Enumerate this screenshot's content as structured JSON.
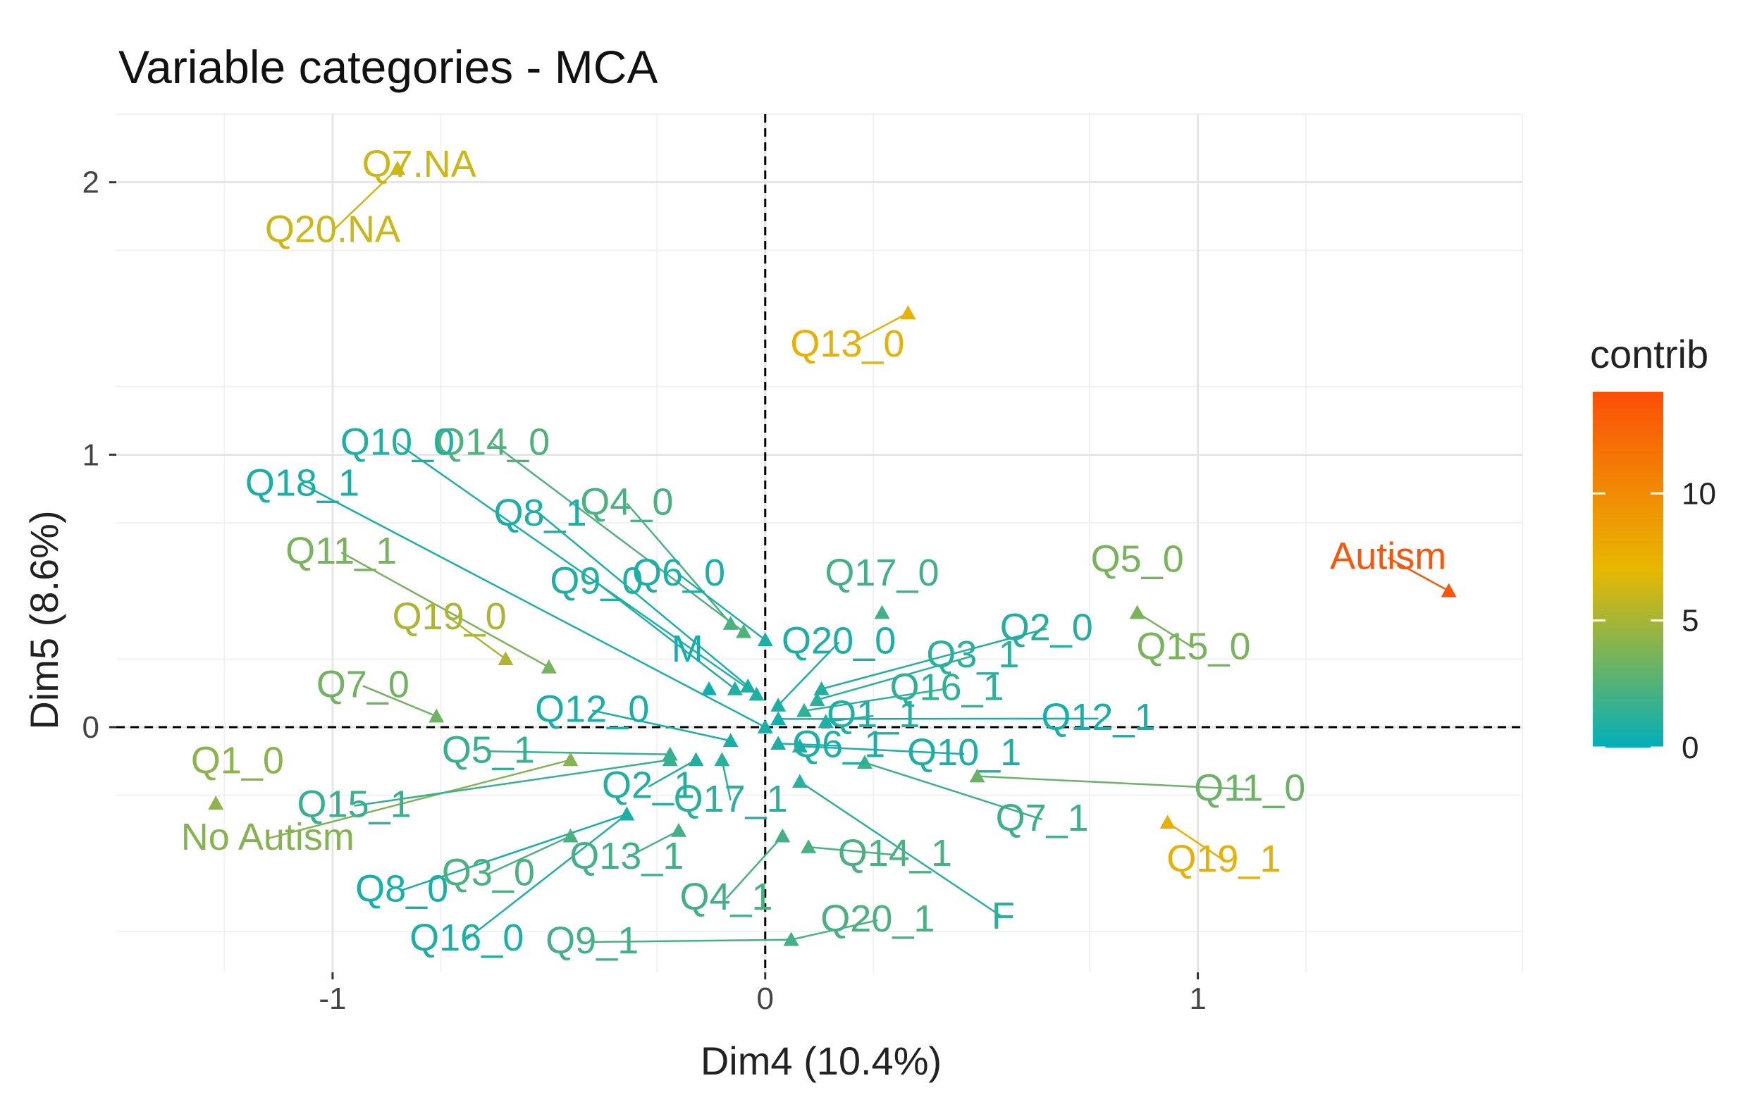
{
  "chart_data": {
    "type": "scatter",
    "title": "Variable categories - MCA",
    "xlabel": "Dim4 (10.4%)",
    "ylabel": "Dim5 (8.6%)",
    "xlim": [
      -1.5,
      1.75
    ],
    "ylim": [
      -0.9,
      2.25
    ],
    "xticks": [
      -1,
      0,
      1
    ],
    "yticks": [
      0,
      1,
      2
    ],
    "xtick_labels": [
      "-1",
      "0",
      "1"
    ],
    "ytick_labels": [
      "0",
      "1",
      "2"
    ],
    "grid": true,
    "reference_lines": {
      "x": 0,
      "y": 0,
      "style": "dashed"
    },
    "legend": {
      "title": "contrib",
      "placement": "right",
      "min": 0,
      "max": 14,
      "ticks": [
        0,
        5,
        10
      ],
      "tick_labels": [
        "0",
        "5",
        "10"
      ]
    },
    "colors": {
      "low": "#00AFBB",
      "mid": "#E7B800",
      "high": "#FC4E07"
    },
    "points": [
      {
        "label": "Q7.NA",
        "x": -0.85,
        "y": 2.05,
        "contrib": 6.2,
        "lx": -0.8,
        "ly": 2.02
      },
      {
        "label": "Q20.NA",
        "x": -0.85,
        "y": 2.05,
        "contrib": 6.2,
        "lx": -1.0,
        "ly": 1.78
      },
      {
        "label": "Q13_0",
        "x": 0.33,
        "y": 1.52,
        "contrib": 7.5,
        "lx": 0.19,
        "ly": 1.36
      },
      {
        "label": "Autism",
        "x": 1.58,
        "y": 0.5,
        "contrib": 13.5,
        "lx": 1.44,
        "ly": 0.58
      },
      {
        "label": "Q19_1",
        "x": 0.93,
        "y": -0.35,
        "contrib": 7.5,
        "lx": 1.06,
        "ly": -0.53
      },
      {
        "label": "Q19_0",
        "x": -0.6,
        "y": 0.25,
        "contrib": 5.2,
        "lx": -0.73,
        "ly": 0.36
      },
      {
        "label": "Q11_1",
        "x": -0.5,
        "y": 0.22,
        "contrib": 3.6,
        "lx": -0.98,
        "ly": 0.6
      },
      {
        "label": "Q7_0",
        "x": -0.76,
        "y": 0.04,
        "contrib": 3.4,
        "lx": -0.93,
        "ly": 0.11
      },
      {
        "label": "Q1_0",
        "x": -1.27,
        "y": -0.28,
        "contrib": 4.2,
        "lx": -1.22,
        "ly": -0.17
      },
      {
        "label": "No Autism",
        "x": -0.45,
        "y": -0.12,
        "contrib": 4.0,
        "lx": -1.15,
        "ly": -0.45
      },
      {
        "label": "Q5_0",
        "x": 0.86,
        "y": 0.42,
        "contrib": 3.6,
        "lx": 0.86,
        "ly": 0.57
      },
      {
        "label": "Q15_0",
        "x": 0.86,
        "y": 0.42,
        "contrib": 3.6,
        "lx": 0.99,
        "ly": 0.25
      },
      {
        "label": "Q11_0",
        "x": 0.49,
        "y": -0.18,
        "contrib": 3.2,
        "lx": 1.12,
        "ly": -0.27
      },
      {
        "label": "Q14_0",
        "x": -0.05,
        "y": 0.35,
        "contrib": 2.4,
        "lx": -0.63,
        "ly": 1.0
      },
      {
        "label": "Q4_0",
        "x": -0.08,
        "y": 0.38,
        "contrib": 2.2,
        "lx": -0.32,
        "ly": 0.78
      },
      {
        "label": "Q17_0",
        "x": 0.27,
        "y": 0.42,
        "contrib": 2.0,
        "lx": 0.27,
        "ly": 0.52
      },
      {
        "label": "Q3_0",
        "x": -0.45,
        "y": -0.4,
        "contrib": 2.2,
        "lx": -0.64,
        "ly": -0.58
      },
      {
        "label": "Q13_1",
        "x": -0.2,
        "y": -0.38,
        "contrib": 2.0,
        "lx": -0.32,
        "ly": -0.52
      },
      {
        "label": "Q14_1",
        "x": 0.1,
        "y": -0.44,
        "contrib": 2.2,
        "lx": 0.3,
        "ly": -0.51
      },
      {
        "label": "Q4_1",
        "x": 0.04,
        "y": -0.4,
        "contrib": 2.0,
        "lx": -0.09,
        "ly": -0.67
      },
      {
        "label": "Q20_1",
        "x": 0.06,
        "y": -0.78,
        "contrib": 2.2,
        "lx": 0.26,
        "ly": -0.75
      },
      {
        "label": "Q9_1",
        "x": 0.06,
        "y": -0.78,
        "contrib": 2.0,
        "lx": -0.4,
        "ly": -0.83
      },
      {
        "label": "Q7_1",
        "x": 0.23,
        "y": -0.13,
        "contrib": 1.8,
        "lx": 0.64,
        "ly": -0.38
      },
      {
        "label": "Q5_1",
        "x": -0.22,
        "y": -0.1,
        "contrib": 1.6,
        "lx": -0.64,
        "ly": -0.13
      },
      {
        "label": "Q15_1",
        "x": -0.22,
        "y": -0.12,
        "contrib": 1.6,
        "lx": -0.95,
        "ly": -0.33
      },
      {
        "label": "Q16_1",
        "x": 0.09,
        "y": 0.06,
        "contrib": 1.4,
        "lx": 0.42,
        "ly": 0.1
      },
      {
        "label": "Q3_1",
        "x": 0.12,
        "y": 0.1,
        "contrib": 1.2,
        "lx": 0.48,
        "ly": 0.22
      },
      {
        "label": "Q10_1",
        "x": 0.08,
        "y": -0.07,
        "contrib": 0.8,
        "lx": 0.46,
        "ly": -0.14
      },
      {
        "label": "Q6_1",
        "x": 0.03,
        "y": -0.06,
        "contrib": 0.8,
        "lx": 0.17,
        "ly": -0.11
      },
      {
        "label": "Q1_1",
        "x": 0.14,
        "y": 0.02,
        "contrib": 0.9,
        "lx": 0.25,
        "ly": 0.0
      },
      {
        "label": "Q10_0",
        "x": -0.02,
        "y": 0.12,
        "contrib": 0.9,
        "lx": -0.85,
        "ly": 1.0
      },
      {
        "label": "Q18_1",
        "x": 0.0,
        "y": 0.0,
        "contrib": 0.7,
        "lx": -1.07,
        "ly": 0.85
      },
      {
        "label": "Q8_1",
        "x": -0.04,
        "y": 0.15,
        "contrib": 0.8,
        "lx": -0.52,
        "ly": 0.74
      },
      {
        "label": "Q9_0",
        "x": -0.07,
        "y": 0.14,
        "contrib": 0.9,
        "lx": -0.39,
        "ly": 0.49
      },
      {
        "label": "Q6_0",
        "x": 0.0,
        "y": 0.32,
        "contrib": 0.8,
        "lx": -0.2,
        "ly": 0.52
      },
      {
        "label": "M",
        "x": -0.13,
        "y": 0.14,
        "contrib": 0.5,
        "lx": -0.18,
        "ly": 0.24
      },
      {
        "label": "Q20_0",
        "x": 0.03,
        "y": 0.08,
        "contrib": 0.8,
        "lx": 0.17,
        "ly": 0.27
      },
      {
        "label": "Q12_0",
        "x": -0.08,
        "y": -0.05,
        "contrib": 0.7,
        "lx": -0.4,
        "ly": 0.02
      },
      {
        "label": "Q12_1",
        "x": 0.03,
        "y": 0.03,
        "contrib": 0.6,
        "lx": 0.77,
        "ly": -0.01
      },
      {
        "label": "Q2_0",
        "x": 0.13,
        "y": 0.14,
        "contrib": 1.0,
        "lx": 0.65,
        "ly": 0.32
      },
      {
        "label": "Q2_1",
        "x": -0.16,
        "y": -0.12,
        "contrib": 1.0,
        "lx": -0.27,
        "ly": -0.26
      },
      {
        "label": "Q17_1",
        "x": -0.1,
        "y": -0.12,
        "contrib": 1.2,
        "lx": -0.08,
        "ly": -0.31
      },
      {
        "label": "F",
        "x": 0.08,
        "y": -0.2,
        "contrib": 1.2,
        "lx": 0.55,
        "ly": -0.74
      },
      {
        "label": "Q8_0",
        "x": -0.32,
        "y": -0.32,
        "contrib": 0.6,
        "lx": -0.84,
        "ly": -0.64
      },
      {
        "label": "Q16_0",
        "x": -0.32,
        "y": -0.32,
        "contrib": 0.8,
        "lx": -0.69,
        "ly": -0.82
      }
    ]
  }
}
